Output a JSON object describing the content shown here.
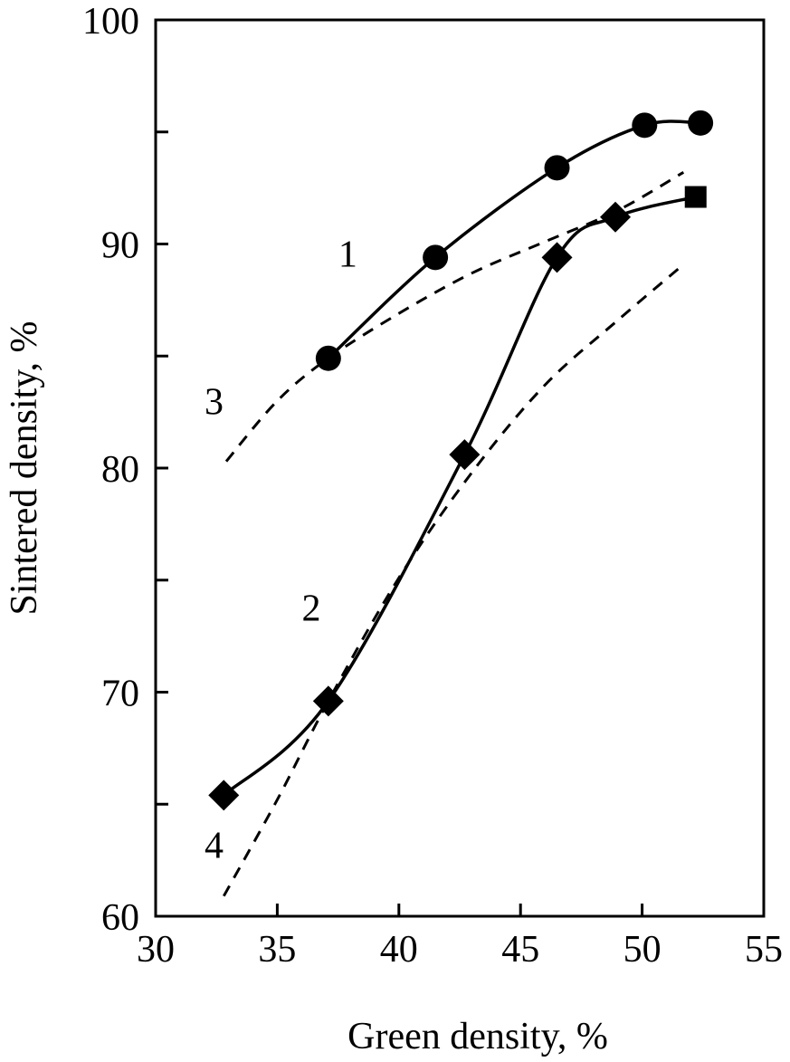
{
  "chart_data": {
    "type": "line",
    "title": "",
    "xlabel": "Green density, %",
    "ylabel": "Sintered density, %",
    "xlim": [
      30,
      55
    ],
    "ylim": [
      60,
      100
    ],
    "x_ticks": [
      30,
      35,
      40,
      45,
      50,
      55
    ],
    "y_ticks_labeled": [
      60,
      70,
      80,
      90,
      100
    ],
    "y_ticks_minor": [
      65,
      75,
      85,
      95
    ],
    "grid": false,
    "legend": "none",
    "series": [
      {
        "label": "1",
        "style": "solid",
        "marker": "circle",
        "x": [
          37.1,
          41.5,
          46.5,
          50.1,
          52.4
        ],
        "y": [
          84.9,
          89.4,
          93.4,
          95.3,
          95.4
        ]
      },
      {
        "label": "2",
        "style": "solid",
        "marker": "diamond",
        "x": [
          32.8,
          37.1,
          42.7,
          46.5,
          48.9
        ],
        "y": [
          65.4,
          69.6,
          80.6,
          89.4,
          91.2
        ]
      },
      {
        "label": "2",
        "style": "solid",
        "marker": "square",
        "x": [
          52.2
        ],
        "y": [
          92.1
        ]
      },
      {
        "label": "3",
        "style": "dashed",
        "marker": "none",
        "x": [
          32.9,
          35.0,
          37.1,
          40.0,
          43.0,
          46.0,
          49.0,
          51.7
        ],
        "y": [
          80.3,
          83.0,
          84.9,
          86.9,
          88.7,
          90.1,
          91.5,
          93.2
        ]
      },
      {
        "label": "4",
        "style": "dashed",
        "marker": "none",
        "x": [
          32.8,
          35.0,
          37.1,
          40.0,
          43.0,
          46.0,
          49.0,
          51.5
        ],
        "y": [
          60.9,
          65.2,
          69.6,
          75.1,
          79.8,
          83.7,
          86.6,
          88.9
        ]
      }
    ]
  }
}
